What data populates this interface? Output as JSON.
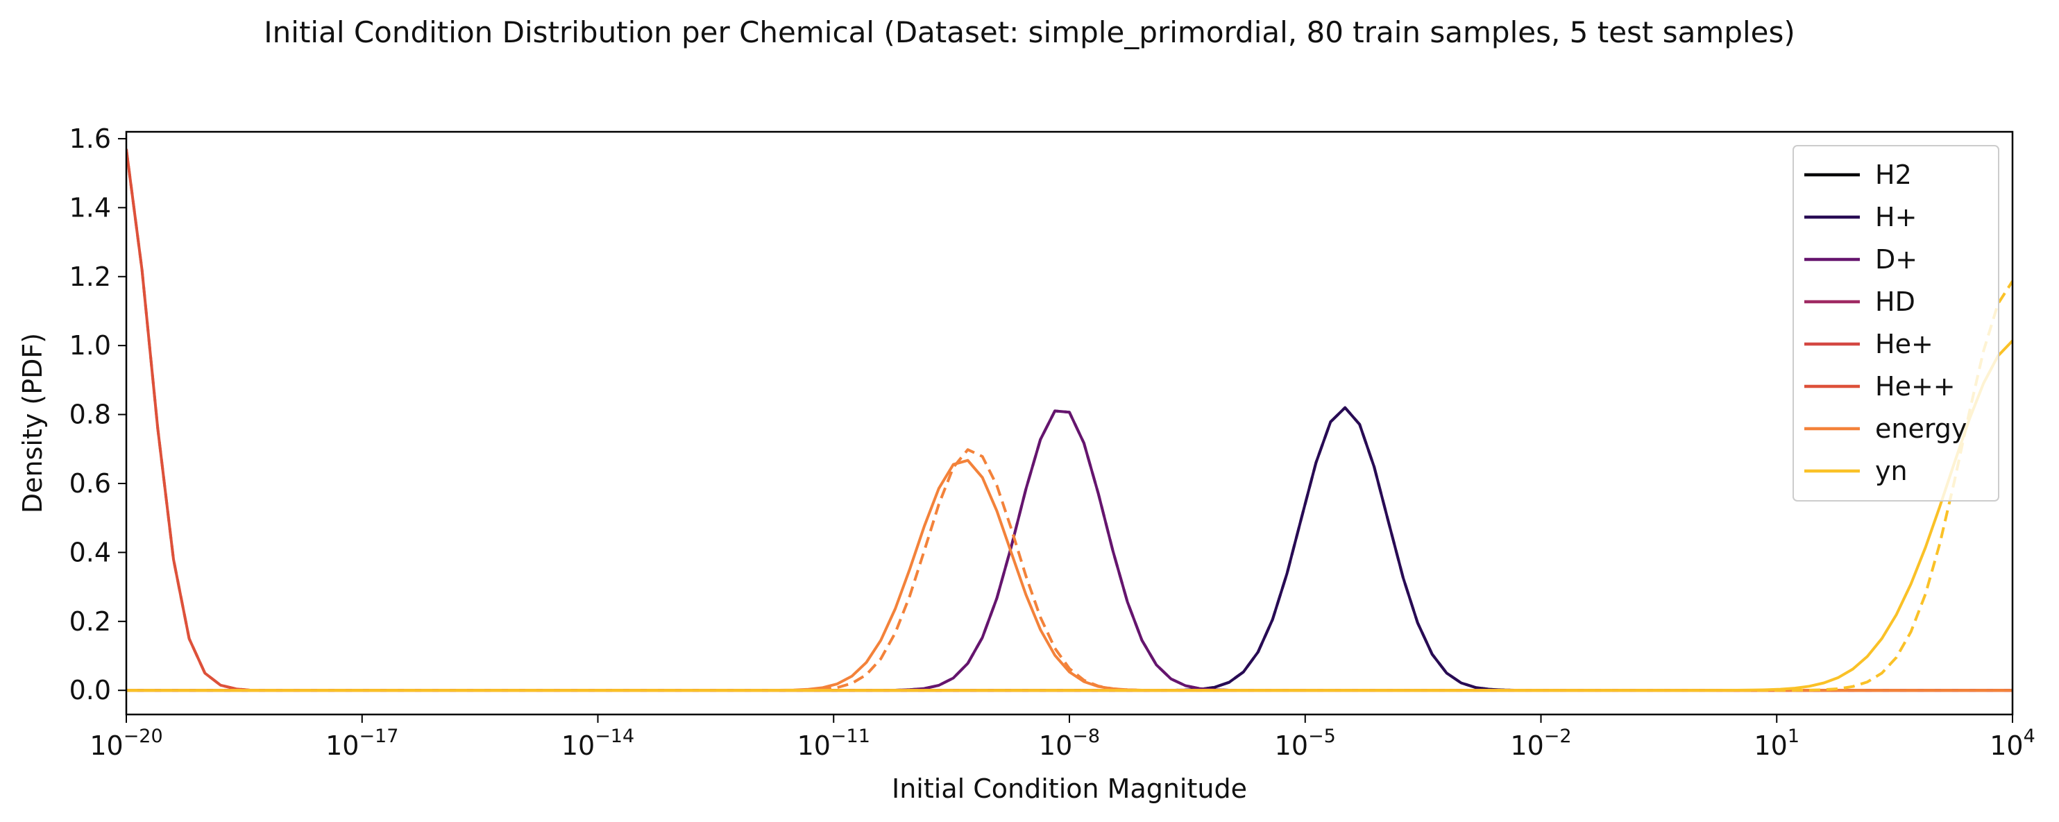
{
  "chart_data": {
    "type": "line",
    "title": "Initial Condition Distribution per Chemical (Dataset: simple_primordial, 80 train samples, 5 test samples)",
    "xlabel": "Initial Condition Magnitude",
    "ylabel": "Density (PDF)",
    "xscale": "log",
    "xlim_exp": [
      -20,
      4
    ],
    "ylim": [
      -0.07,
      1.62
    ],
    "x_ticks": [
      {
        "exp": -20,
        "label": "10",
        "sup": "−20"
      },
      {
        "exp": -17,
        "label": "10",
        "sup": "−17"
      },
      {
        "exp": -14,
        "label": "10",
        "sup": "−14"
      },
      {
        "exp": -11,
        "label": "10",
        "sup": "−11"
      },
      {
        "exp": -8,
        "label": "10",
        "sup": "−8"
      },
      {
        "exp": -5,
        "label": "10",
        "sup": "−5"
      },
      {
        "exp": -2,
        "label": "10",
        "sup": "−2"
      },
      {
        "exp": 1,
        "label": "10",
        "sup": "1"
      },
      {
        "exp": 4,
        "label": "10",
        "sup": "4"
      }
    ],
    "y_ticks": [
      "0.0",
      "0.2",
      "0.4",
      "0.6",
      "0.8",
      "1.0",
      "1.2",
      "1.4",
      "1.6"
    ],
    "legend_position": "upper right",
    "line_styles_note": "solid = train, dashed = test",
    "series": [
      {
        "name": "H2",
        "color": "#000004",
        "curve": {
          "kind": "gauss",
          "center_exp": -4.5,
          "sigma_exp": 0.55,
          "peak": 0.82,
          "flat": true
        }
      },
      {
        "name": "H+",
        "color": "#280b54",
        "curve": {
          "kind": "gauss",
          "center_exp": -4.5,
          "sigma_exp": 0.55,
          "peak": 0.82
        },
        "test_curve": {
          "kind": "gauss",
          "center_exp": -4.5,
          "sigma_exp": 0.55,
          "peak": 0.82
        }
      },
      {
        "name": "D+",
        "color": "#65156e",
        "curve": {
          "kind": "gauss",
          "center_exp": -8.1,
          "sigma_exp": 0.55,
          "peak": 0.82
        },
        "test_curve": {
          "kind": "gauss",
          "center_exp": -8.1,
          "sigma_exp": 0.55,
          "peak": 0.82
        }
      },
      {
        "name": "HD",
        "color": "#9f2a63",
        "curve": {
          "kind": "gauss",
          "center_exp": -4.5,
          "sigma_exp": 0.55,
          "peak": 0.82,
          "flat": true
        }
      },
      {
        "name": "He+",
        "color": "#d44842",
        "curve": {
          "kind": "gauss",
          "center_exp": -19.9,
          "sigma_exp": 0.4,
          "peak": 1.57,
          "flat": true
        }
      },
      {
        "name": "He++",
        "color": "#dd513a",
        "curve": {
          "kind": "points",
          "x_exp": [
            -20.0,
            -19.8,
            -19.6,
            -19.4,
            -19.2,
            -19.0,
            -18.8,
            -18.6,
            -18.4,
            -18.0,
            4.0
          ],
          "y": [
            1.57,
            1.22,
            0.76,
            0.38,
            0.15,
            0.05,
            0.015,
            0.004,
            0.0,
            0.0,
            0.0
          ]
        },
        "test_curve": {
          "kind": "points",
          "x_exp": [
            -20.0,
            -19.8,
            -19.6,
            -19.4,
            -19.2,
            -19.0,
            -18.8,
            -18.6,
            -18.4,
            -18.0,
            4.0
          ],
          "y": [
            1.57,
            1.22,
            0.76,
            0.38,
            0.15,
            0.05,
            0.015,
            0.004,
            0.0,
            0.0,
            0.0
          ]
        }
      },
      {
        "name": "energy",
        "color": "#f3823a",
        "curve": {
          "kind": "gauss",
          "center_exp": -9.35,
          "sigma_exp": 0.6,
          "peak": 0.67
        },
        "test_curve": {
          "kind": "gauss",
          "center_exp": -9.25,
          "sigma_exp": 0.57,
          "peak": 0.7
        }
      },
      {
        "name": "yn",
        "color": "#fac127",
        "curve": {
          "kind": "gauss",
          "center_exp": 4.1,
          "sigma_exp": 0.9,
          "peak": 1.02
        },
        "test_curve": {
          "kind": "gauss",
          "center_exp": 4.05,
          "sigma_exp": 0.68,
          "peak": 1.19
        }
      }
    ]
  }
}
